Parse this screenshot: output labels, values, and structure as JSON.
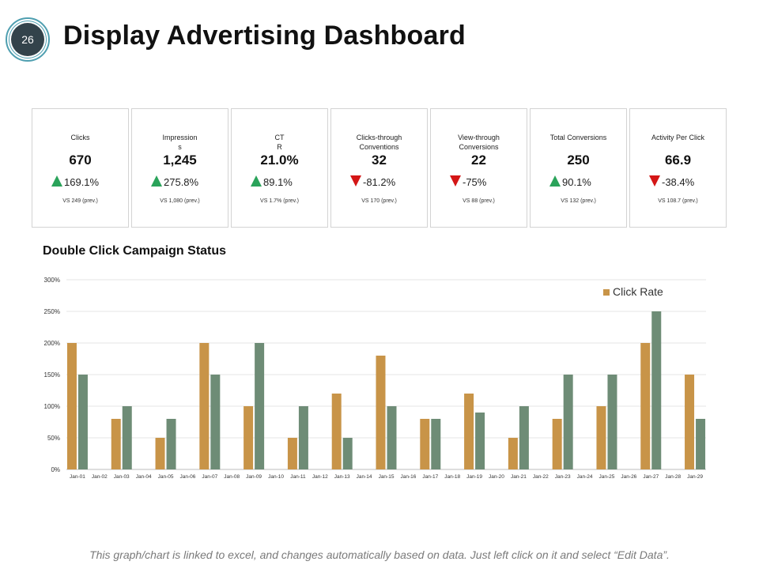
{
  "slide_number": "26",
  "title": "Display Advertising Dashboard",
  "kpis": [
    {
      "label": "Clicks",
      "value": "670",
      "direction": "up",
      "change": "169.1%",
      "prev": "VS 249 (prev.)"
    },
    {
      "label": "Impression\ns",
      "value": "1,245",
      "direction": "up",
      "change": "275.8%",
      "prev": "VS 1,080 (prev.)"
    },
    {
      "label": "CT\nR",
      "value": "21.0%",
      "direction": "up",
      "change": "89.1%",
      "prev": "VS 1.7% (prev.)"
    },
    {
      "label": "Clicks-through\nConventions",
      "value": "32",
      "direction": "down",
      "change": "-81.2%",
      "prev": "VS 170 (prev.)"
    },
    {
      "label": "View-through\nConversions",
      "value": "22",
      "direction": "down",
      "change": "-75%",
      "prev": "VS 88 (prev.)"
    },
    {
      "label": "Total Conversions",
      "value": "250",
      "direction": "up",
      "change": "90.1%",
      "prev": "VS 132 (prev.)"
    },
    {
      "label": "Activity Per Click",
      "value": "66.9",
      "direction": "down",
      "change": "-38.4%",
      "prev": "VS 108.7 (prev.)"
    }
  ],
  "colors": {
    "up": "#2aa35a",
    "down": "#d41616",
    "series1": "#c89448",
    "series2": "#6e8c76",
    "grid": "#e6e6e6"
  },
  "chart_data": {
    "type": "bar",
    "title": "Double Click Campaign Status",
    "categories": [
      "Jan-01",
      "Jan-02",
      "Jan-03",
      "Jan-04",
      "Jan-05",
      "Jan-06",
      "Jan-07",
      "Jan-08",
      "Jan-09",
      "Jan-10",
      "Jan-11",
      "Jan-12",
      "Jan-13",
      "Jan-14",
      "Jan-15",
      "Jan-16",
      "Jan-17",
      "Jan-18",
      "Jan-19",
      "Jan-20",
      "Jan-21",
      "Jan-22",
      "Jan-23",
      "Jan-24",
      "Jan-25",
      "Jan-26",
      "Jan-27",
      "Jan-28",
      "Jan-29"
    ],
    "yticks": [
      "0%",
      "50%",
      "100%",
      "150%",
      "200%",
      "250%",
      "300%"
    ],
    "ylim": [
      0,
      300
    ],
    "legend": "Click Rate",
    "legend_position": "top-right",
    "grid": true,
    "series": [
      {
        "name": "Click Rate",
        "values": [
          200,
          0,
          80,
          0,
          50,
          0,
          200,
          0,
          100,
          0,
          50,
          0,
          120,
          0,
          180,
          0,
          80,
          0,
          120,
          0,
          50,
          0,
          80,
          0,
          100,
          0,
          200,
          0,
          150
        ]
      },
      {
        "name": "",
        "values": [
          150,
          0,
          100,
          0,
          80,
          0,
          150,
          0,
          200,
          0,
          100,
          0,
          50,
          0,
          100,
          0,
          80,
          0,
          90,
          0,
          100,
          0,
          150,
          0,
          150,
          0,
          250,
          0,
          80
        ]
      }
    ]
  },
  "footnote": "This graph/chart is linked to excel, and changes automatically based on data. Just left click on it and select “Edit Data”."
}
